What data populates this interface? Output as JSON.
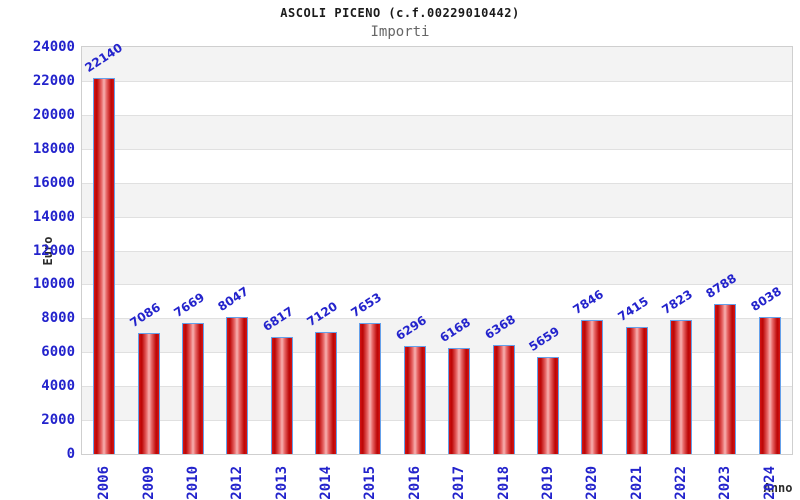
{
  "header": {
    "title": "ASCOLI PICENO (c.f.00229010442)",
    "subtitle": "Importi"
  },
  "chart_data": {
    "type": "bar",
    "title": "ASCOLI PICENO (c.f.00229010442)",
    "subtitle": "Importi",
    "xlabel": "Anno",
    "ylabel": "Euro",
    "categories": [
      "2006",
      "2009",
      "2010",
      "2012",
      "2013",
      "2014",
      "2015",
      "2016",
      "2017",
      "2018",
      "2019",
      "2020",
      "2021",
      "2022",
      "2023",
      "2024"
    ],
    "values": [
      22140,
      7086,
      7669,
      8047,
      6817,
      7120,
      7653,
      6296,
      6168,
      6368,
      5659,
      7846,
      7415,
      7823,
      8788,
      8038
    ],
    "ylim": [
      0,
      24000
    ],
    "ytick_step": 2000,
    "grid": true,
    "bands_alternating": true,
    "legend_position": "none",
    "colors": {
      "tick_label": "#2323cc",
      "value_label": "#2323cc",
      "bar_edge": "#64a0ea",
      "bar_dark": "#bb0606",
      "bar_light": "#f7b0b0",
      "band_gray": "#f3f3f3",
      "grid_line": "#e0e0e0",
      "plot_border": "#cfcfcf",
      "subtitle_gray": "#666666",
      "axis_title": "#2b2b2b"
    }
  }
}
